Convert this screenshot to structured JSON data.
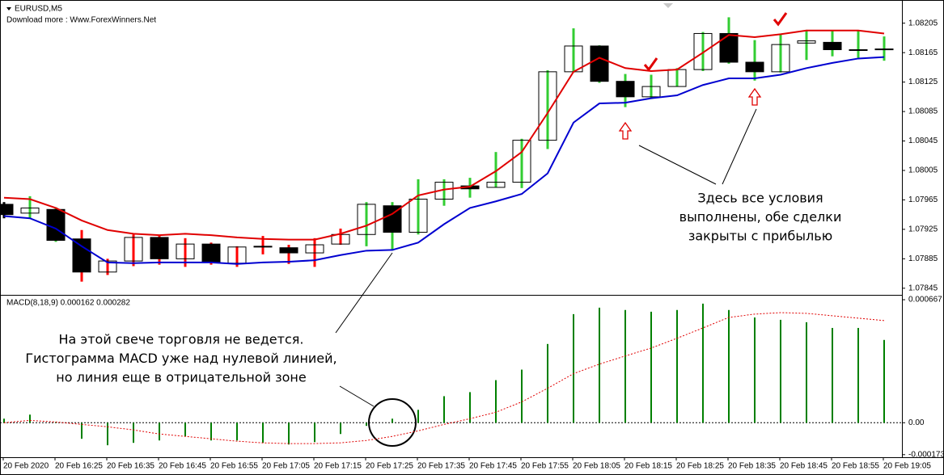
{
  "chart_data": [
    {
      "type": "candlestick",
      "title": "EURUSD,M5",
      "subtitle": "Download more : Www.ForexWinners.Net",
      "open": [
        1.07959,
        1.07947,
        1.07952,
        1.07912,
        1.07867,
        1.07882,
        1.07914,
        1.07885,
        1.07905,
        1.07879,
        1.07902,
        1.079,
        1.07893,
        1.07905,
        1.07918,
        1.07957,
        1.07921,
        1.07966,
        1.07984,
        1.07982,
        1.07989,
        1.08046,
        1.08139,
        1.08174,
        1.08126,
        1.08105,
        1.08119,
        1.08142,
        1.08191,
        1.08152,
        1.08139,
        1.08178,
        1.08179,
        1.08169,
        1.0817
      ],
      "high": [
        1.07962,
        1.0797,
        1.07955,
        1.07924,
        1.07885,
        1.07918,
        1.07916,
        1.07913,
        1.07907,
        1.07902,
        1.07916,
        1.07904,
        1.07913,
        1.07926,
        1.07962,
        1.07962,
        1.07993,
        1.07993,
        1.07995,
        1.0803,
        1.08048,
        1.08141,
        1.08198,
        1.08175,
        1.08136,
        1.08135,
        1.08144,
        1.08193,
        1.08213,
        1.08182,
        1.08191,
        1.08196,
        1.08195,
        1.08195,
        1.08187
      ],
      "low": [
        1.0794,
        1.0794,
        1.07908,
        1.07854,
        1.07863,
        1.07875,
        1.07877,
        1.07874,
        1.07877,
        1.07874,
        1.07891,
        1.07878,
        1.07874,
        1.07904,
        1.07902,
        1.07896,
        1.07918,
        1.07957,
        1.07968,
        1.07982,
        1.07981,
        1.08034,
        1.08138,
        1.08124,
        1.08091,
        1.08102,
        1.08119,
        1.0814,
        1.0815,
        1.08127,
        1.08138,
        1.08155,
        1.0816,
        1.08158,
        1.08154
      ],
      "close": [
        1.07945,
        1.07954,
        1.0791,
        1.07867,
        1.07882,
        1.07914,
        1.07885,
        1.07905,
        1.0788,
        1.07901,
        1.07902,
        1.07893,
        1.07904,
        1.07918,
        1.07959,
        1.07921,
        1.07966,
        1.07989,
        1.0798,
        1.07989,
        1.08046,
        1.08139,
        1.08174,
        1.08126,
        1.08105,
        1.08119,
        1.08142,
        1.08191,
        1.08152,
        1.08139,
        1.08176,
        1.08181,
        1.08169,
        1.08169,
        1.0817
      ],
      "wick_colors": [
        "#000000",
        "#32cd32",
        "#32cd32",
        "#ff0000",
        "#ff0000",
        "#ff0000",
        "#ff0000",
        "#ff0000",
        "#ff0000",
        "#ff0000",
        "#ff0000",
        "#ff0000",
        "#ff0000",
        "#ff0000",
        "#32cd32",
        "#32cd32",
        "#32cd32",
        "#32cd32",
        "#32cd32",
        "#32cd32",
        "#32cd32",
        "#32cd32",
        "#32cd32",
        "#32cd32",
        "#32cd32",
        "#32cd32",
        "#32cd32",
        "#32cd32",
        "#32cd32",
        "#32cd32",
        "#32cd32",
        "#32cd32",
        "#32cd32",
        "#32cd32",
        "#32cd32"
      ],
      "lines": [
        {
          "color": "#e00000",
          "values": [
            1.07968,
            1.07966,
            1.07954,
            1.07937,
            1.07924,
            1.07919,
            1.07917,
            1.07919,
            1.07917,
            1.07914,
            1.07912,
            1.07911,
            1.07911,
            1.07919,
            1.0793,
            1.07946,
            1.07971,
            1.07979,
            1.07983,
            1.08004,
            1.0803,
            1.08083,
            1.08139,
            1.08158,
            1.08144,
            1.0814,
            1.08142,
            1.08165,
            1.08189,
            1.08186,
            1.0819,
            1.08195,
            1.08195,
            1.08195,
            1.08191
          ]
        },
        {
          "color": "#0000d0",
          "values": [
            1.07943,
            1.0794,
            1.07926,
            1.07902,
            1.0788,
            1.07879,
            1.0788,
            1.0788,
            1.0788,
            1.07878,
            1.0788,
            1.07881,
            1.07883,
            1.0789,
            1.07896,
            1.07897,
            1.07907,
            1.07932,
            1.07954,
            1.07963,
            1.07973,
            1.08001,
            1.0807,
            1.08096,
            1.08097,
            1.08103,
            1.08107,
            1.08121,
            1.0813,
            1.0813,
            1.08135,
            1.08144,
            1.08151,
            1.08157,
            1.08159
          ]
        }
      ],
      "ylim": [
        1.07836,
        1.08231
      ],
      "yticks": [
        1.08205,
        1.08165,
        1.08125,
        1.08085,
        1.08045,
        1.08005,
        1.07965,
        1.07925,
        1.07885,
        1.07845
      ],
      "annotations": [
        [
          "Здесь все условия",
          "выполнены, обе сделки",
          "закрыты с прибылью"
        ],
        [
          "На этой свече торговля не ведется.",
          "Гистограмма MACD уже над нулевой линией,",
          "но линия еще в отрицательной зоне"
        ]
      ]
    },
    {
      "type": "bar",
      "title": "MACD(8,18,9) 0.000162 0.000282",
      "color": "#008000",
      "values": [
        2.2e-05,
        4.4e-05,
        4e-06,
        -8.7e-05,
        -0.000122,
        -0.000109,
        -9.6e-05,
        -7.4e-05,
        -9.6e-05,
        -9.6e-05,
        -0.000109,
        -0.000118,
        -0.000105,
        -6.1e-05,
        -1.7e-05,
        2.2e-05,
        7e-05,
        0.000144,
        0.000166,
        0.000231,
        0.000288,
        0.000427,
        0.000589,
        0.000624,
        0.000611,
        0.000602,
        0.000611,
        0.000646,
        0.000611,
        0.000571,
        0.000558,
        0.000545,
        0.000514,
        0.000514,
        0.000449
      ],
      "signal": {
        "color": "#e00000",
        "values": [
          0,
          1.3e-05,
          4e-06,
          -9e-06,
          -2.2e-05,
          -3.9e-05,
          -6.1e-05,
          -7.4e-05,
          -8.7e-05,
          -0.0001,
          -0.000109,
          -0.000113,
          -0.000113,
          -0.000109,
          -9.6e-05,
          -7.4e-05,
          -4.4e-05,
          -9e-06,
          2.2e-05,
          5.7e-05,
          0.000113,
          0.000187,
          0.000266,
          0.000318,
          0.000362,
          0.000405,
          0.000458,
          0.000514,
          0.000571,
          0.000589,
          0.000597,
          0.000593,
          0.00058,
          0.000567,
          0.000554
        ]
      },
      "ylim": [
        -0.000187,
        0.000689
      ],
      "yticks": [
        0.000667,
        {
          "value": 0,
          "label": "0.00"
        },
        -0.000173
      ],
      "x_labels": [
        "20 Feb 2020",
        "20 Feb 16:25",
        "20 Feb 16:35",
        "20 Feb 16:45",
        "20 Feb 16:55",
        "20 Feb 17:05",
        "20 Feb 17:15",
        "20 Feb 17:25",
        "20 Feb 17:35",
        "20 Feb 17:45",
        "20 Feb 17:55",
        "20 Feb 18:05",
        "20 Feb 18:15",
        "20 Feb 18:25",
        "20 Feb 18:35",
        "20 Feb 18:45",
        "20 Feb 18:55",
        "20 Feb 19:05"
      ]
    }
  ]
}
